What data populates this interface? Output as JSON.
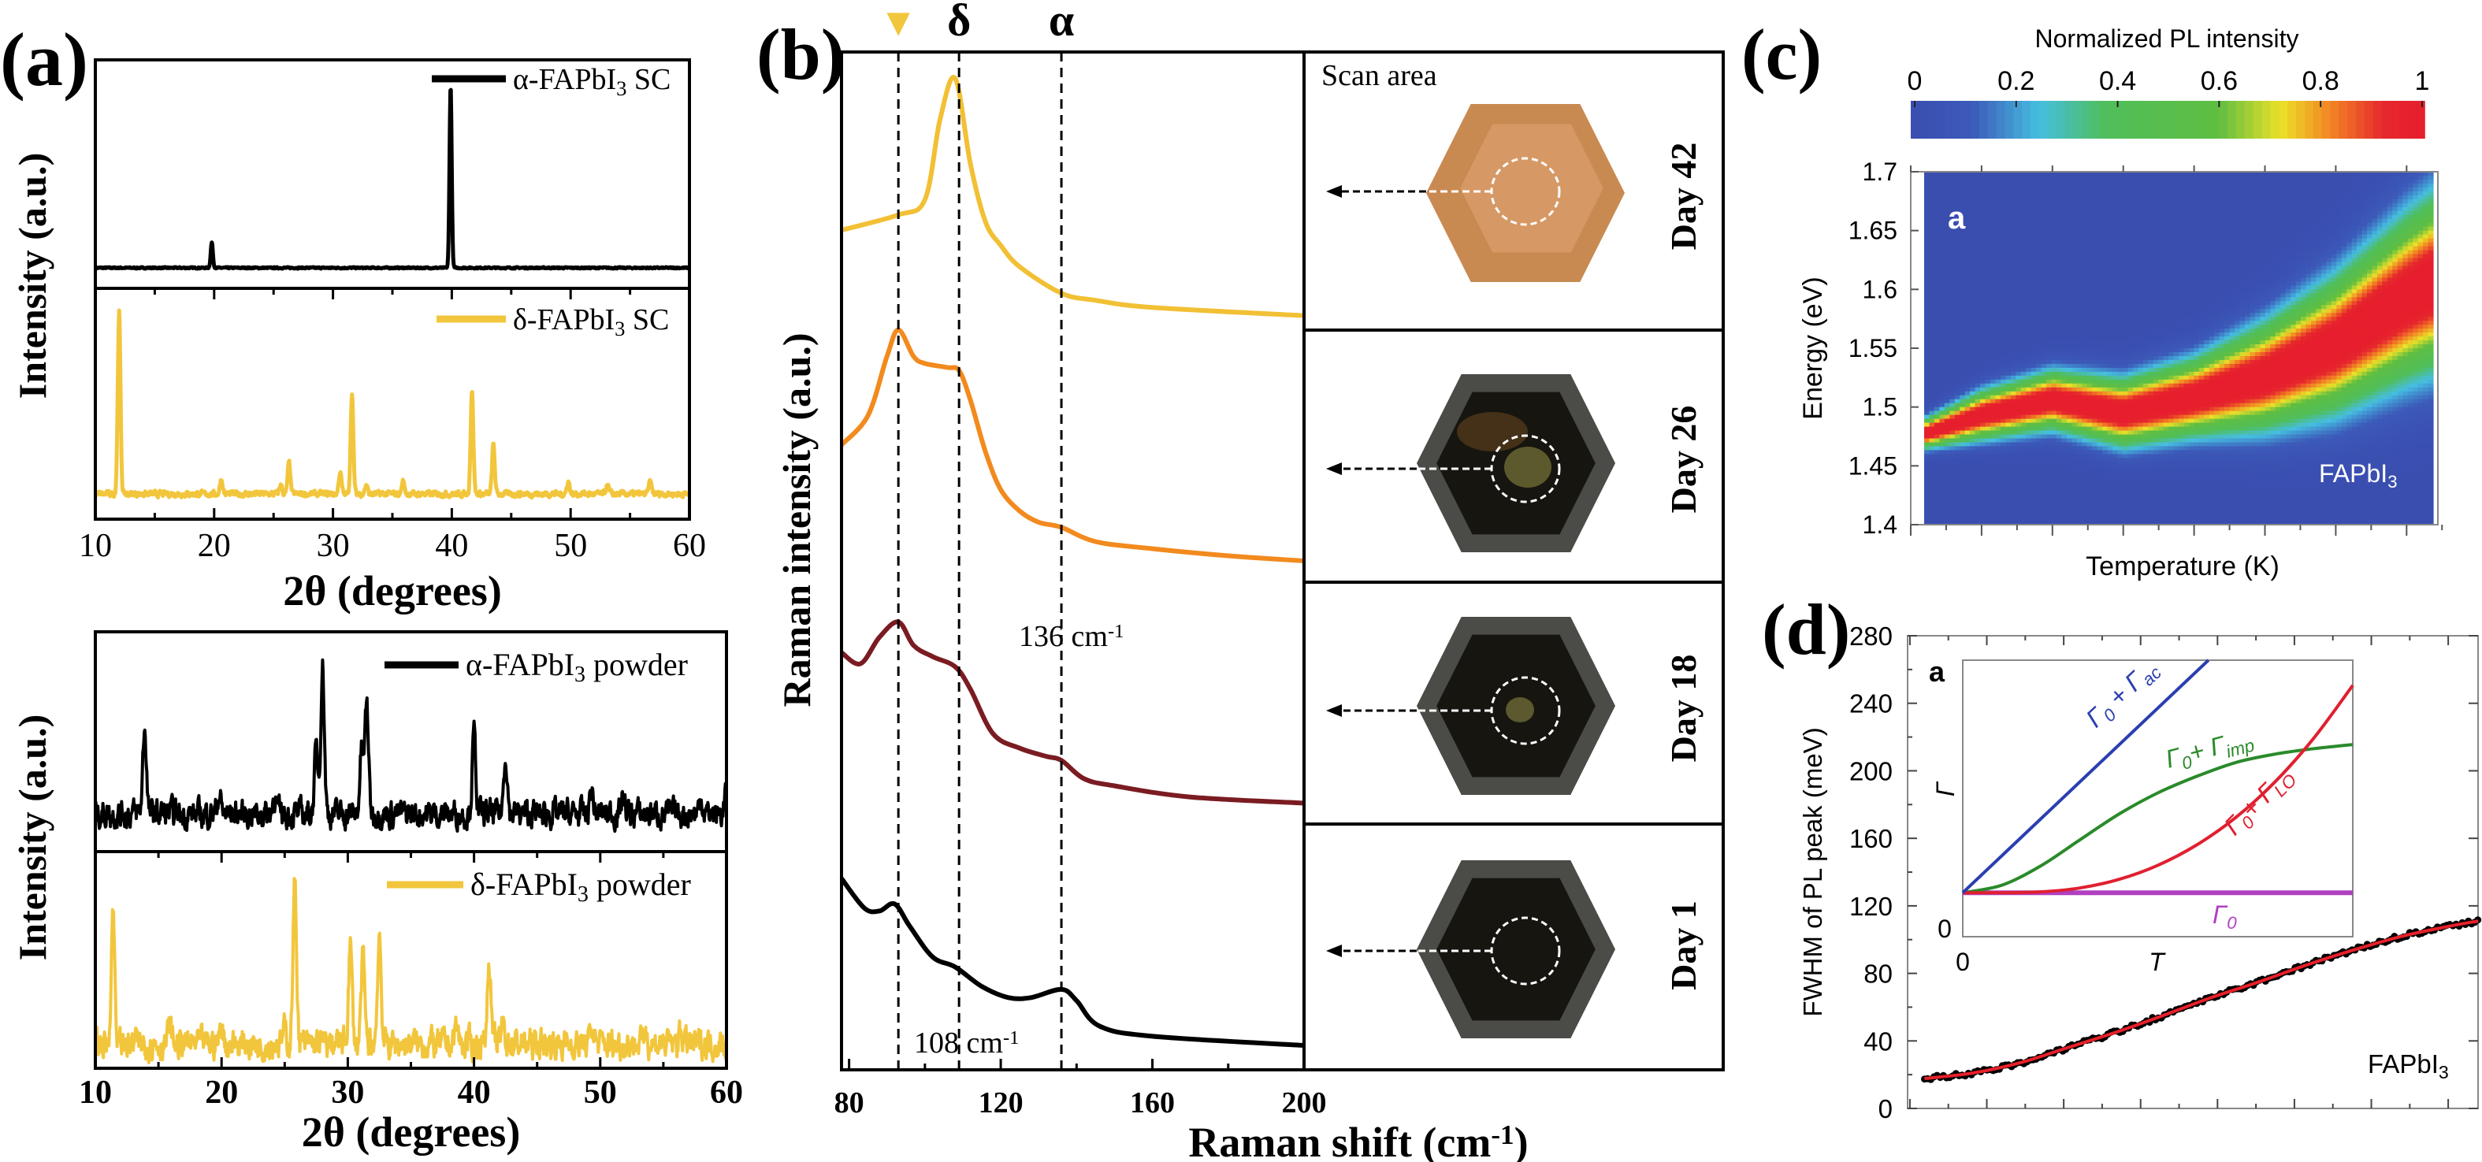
{
  "chart_data": [
    {
      "panel": "(a)",
      "type": "line",
      "xlabel": "2θ  (degrees)",
      "ylabel": "Intensity (a.u.)",
      "xlim": [
        10,
        60
      ],
      "xticks": [
        10,
        20,
        30,
        40,
        50,
        60
      ],
      "stacked": true,
      "series": [
        {
          "name": "α-FAPbI3 SC",
          "label": [
            "α-FAPbI",
            "3",
            " SC"
          ],
          "color": "#000000",
          "peaks": [
            [
              19.8,
              0.14
            ],
            [
              39.9,
              1.0
            ]
          ]
        },
        {
          "name": "δ-FAPbI3 SC",
          "label": [
            "δ-FAPbI",
            "3",
            " SC"
          ],
          "color": "#f2c63c",
          "peaks": [
            [
              12.0,
              1.0
            ],
            [
              20.6,
              0.08
            ],
            [
              25.6,
              0.05
            ],
            [
              26.3,
              0.17
            ],
            [
              30.6,
              0.12
            ],
            [
              31.6,
              0.55
            ],
            [
              32.8,
              0.05
            ],
            [
              35.9,
              0.07
            ],
            [
              41.7,
              0.57
            ],
            [
              43.5,
              0.27
            ],
            [
              49.8,
              0.07
            ],
            [
              53.1,
              0.05
            ],
            [
              56.7,
              0.07
            ]
          ]
        }
      ]
    },
    {
      "panel": "",
      "type": "line",
      "xlabel": "2θ  (degrees)",
      "ylabel": "Intensity (a.u.)",
      "xlim": [
        10,
        60
      ],
      "xticks": [
        10,
        20,
        30,
        40,
        50,
        60
      ],
      "stacked": true,
      "series": [
        {
          "name": "α-FAPbI3 powder",
          "label": [
            "α-FAPbI",
            "3",
            " powder"
          ],
          "color": "#000000",
          "peaks": [
            [
              13.9,
              0.55
            ],
            [
              19.8,
              0.12
            ],
            [
              24.2,
              0.12
            ],
            [
              27.5,
              0.4
            ],
            [
              28.0,
              0.95
            ],
            [
              31.1,
              0.4
            ],
            [
              31.5,
              0.7
            ],
            [
              40.0,
              0.5
            ],
            [
              42.5,
              0.38
            ],
            [
              49.3,
              0.15
            ],
            [
              51.8,
              0.12
            ],
            [
              58.0,
              0.1
            ],
            [
              60.0,
              0.17
            ]
          ]
        },
        {
          "name": "δ-FAPbI3 powder",
          "label": [
            "δ-FAPbI",
            "3",
            " powder"
          ],
          "color": "#f2c63c",
          "peaks": [
            [
              11.4,
              0.78
            ],
            [
              15.9,
              0.1
            ],
            [
              20.0,
              0.1
            ],
            [
              25.0,
              0.08
            ],
            [
              25.8,
              0.95
            ],
            [
              30.2,
              0.58
            ],
            [
              31.2,
              0.5
            ],
            [
              32.5,
              0.65
            ],
            [
              38.6,
              0.1
            ],
            [
              41.2,
              0.5
            ],
            [
              42.3,
              0.12
            ],
            [
              49.4,
              0.1
            ],
            [
              53.6,
              0.08
            ],
            [
              56.4,
              0.08
            ]
          ]
        }
      ]
    },
    {
      "panel": "(b)",
      "type": "line",
      "xlabel": [
        "Raman shift (cm",
        "-1",
        ")"
      ],
      "ylabel": "Raman intensity (a.u.)",
      "xlim": [
        78,
        200
      ],
      "xticks": [
        80,
        120,
        160,
        200
      ],
      "ylim": [
        0,
        10
      ],
      "reference_lines": [
        {
          "x": 93,
          "marker": "▼",
          "marker_color": "#f2c63c"
        },
        {
          "x": 109,
          "marker": "δ"
        },
        {
          "x": 136,
          "marker": "α"
        }
      ],
      "annotations": [
        [
          "136 cm",
          "-1"
        ],
        [
          "108 cm",
          "-1"
        ]
      ],
      "series": [
        {
          "name": "Day 42",
          "color": "#f2c035",
          "points": [
            [
              78,
              8.25
            ],
            [
              93,
              8.4
            ],
            [
              100,
              8.55
            ],
            [
              104,
              9.34
            ],
            [
              108,
              9.74
            ],
            [
              112,
              8.9
            ],
            [
              116,
              8.33
            ],
            [
              120,
              8.1
            ],
            [
              125,
              7.89
            ],
            [
              136,
              7.63
            ],
            [
              145,
              7.56
            ],
            [
              160,
              7.49
            ],
            [
              200,
              7.41
            ]
          ]
        },
        {
          "name": "Day 26",
          "color": "#f28a1e",
          "points": [
            [
              78,
              6.14
            ],
            [
              85,
              6.43
            ],
            [
              90,
              7.01
            ],
            [
              93,
              7.27
            ],
            [
              97,
              7.01
            ],
            [
              100,
              6.94
            ],
            [
              106,
              6.9
            ],
            [
              109,
              6.87
            ],
            [
              112,
              6.58
            ],
            [
              116,
              6.07
            ],
            [
              120,
              5.7
            ],
            [
              125,
              5.49
            ],
            [
              130,
              5.38
            ],
            [
              136,
              5.33
            ],
            [
              145,
              5.19
            ],
            [
              160,
              5.12
            ],
            [
              180,
              5.05
            ],
            [
              200,
              5.0
            ]
          ]
        },
        {
          "name": "Day 18",
          "color": "#7a1c22",
          "points": [
            [
              78,
              4.1
            ],
            [
              83,
              3.99
            ],
            [
              88,
              4.25
            ],
            [
              93,
              4.4
            ],
            [
              97,
              4.17
            ],
            [
              102,
              4.06
            ],
            [
              108,
              3.96
            ],
            [
              112,
              3.74
            ],
            [
              118,
              3.3
            ],
            [
              125,
              3.16
            ],
            [
              132,
              3.08
            ],
            [
              136,
              3.04
            ],
            [
              142,
              2.86
            ],
            [
              150,
              2.79
            ],
            [
              170,
              2.68
            ],
            [
              200,
              2.62
            ]
          ]
        },
        {
          "name": "Day 1",
          "color": "#000000",
          "points": [
            [
              78,
              1.88
            ],
            [
              84,
              1.59
            ],
            [
              88,
              1.56
            ],
            [
              92,
              1.63
            ],
            [
              96,
              1.41
            ],
            [
              102,
              1.11
            ],
            [
              108,
              1.01
            ],
            [
              115,
              0.82
            ],
            [
              122,
              0.71
            ],
            [
              128,
              0.71
            ],
            [
              136,
              0.79
            ],
            [
              140,
              0.68
            ],
            [
              146,
              0.43
            ],
            [
              160,
              0.33
            ],
            [
              200,
              0.24
            ]
          ]
        }
      ],
      "photos": {
        "title": "Scan area",
        "days": [
          "Day 42",
          "Day 26",
          "Day 18",
          "Day 1"
        ]
      }
    },
    {
      "panel": "(c)",
      "type": "heatmap",
      "colorbar_title": "Normalized PL intensity",
      "colorbar_ticks": [
        "0",
        "0.2",
        "0.4",
        "0.6",
        "0.8",
        "1"
      ],
      "colorbar_range": [
        0,
        1
      ],
      "colormap": "jet",
      "xlabel": "Temperature (K)",
      "ylabel": "Energy (eV)",
      "ylim": [
        1.4,
        1.7
      ],
      "yticks": [
        "1.4",
        "1.45",
        "1.5",
        "1.55",
        "1.6",
        "1.65",
        "1.7"
      ],
      "x_major_ticks": 8,
      "inner_label": "a",
      "sample_label": [
        "FAPbI",
        "3"
      ],
      "ridge": {
        "x_tick_index": [
          0.19,
          1,
          2,
          3,
          4,
          5,
          6,
          7,
          7.38
        ],
        "peak_energy_eV": [
          1.477,
          1.493,
          1.506,
          1.495,
          1.508,
          1.526,
          1.553,
          1.593,
          1.606
        ],
        "band_halfwidth_eV": [
          0.015,
          0.025,
          0.03,
          0.035,
          0.04,
          0.055,
          0.07,
          0.085,
          0.09
        ]
      }
    },
    {
      "panel": "(d)",
      "type": "line",
      "ylabel": "FWHM of PL peak (meV)",
      "ylim": [
        0,
        280
      ],
      "yticks": [
        "0",
        "40",
        "80",
        "120",
        "160",
        "200",
        "240",
        "280"
      ],
      "x_major_ticks": 7,
      "sample_label": [
        "FAPbI",
        "3"
      ],
      "series": [
        {
          "name": "data",
          "color": "#000000",
          "marker": "dot",
          "points": [
            [
              0.22,
              17.7
            ],
            [
              0.84,
              20.9
            ],
            [
              1.46,
              27
            ],
            [
              2.08,
              36
            ],
            [
              2.7,
              45
            ],
            [
              3.32,
              55
            ],
            [
              3.94,
              65.5
            ],
            [
              4.57,
              75
            ],
            [
              5.19,
              85
            ],
            [
              5.81,
              94
            ],
            [
              6.43,
              102
            ],
            [
              7.05,
              108
            ],
            [
              7.42,
              111
            ]
          ]
        },
        {
          "name": "fit",
          "color": "#e8202a",
          "marker": "line"
        }
      ],
      "inset": {
        "label": "a",
        "ylabel": "Γ",
        "xlabel": "T",
        "y_zero": "0",
        "x_zero": "0",
        "curves": [
          {
            "label": [
              "Γ",
              "0",
              " + Γ",
              "ac"
            ],
            "color": "#2b3fb0",
            "points": [
              [
                0,
                0.159
              ],
              [
                0.63,
                1.0
              ]
            ]
          },
          {
            "label": [
              "Γ",
              "0",
              "+ Γ",
              "imp"
            ],
            "color": "#2a8a2a",
            "points": [
              [
                0,
                0.159
              ],
              [
                0.1,
                0.186
              ],
              [
                0.2,
                0.256
              ],
              [
                0.3,
                0.35
              ],
              [
                0.4,
                0.443
              ],
              [
                0.5,
                0.52
              ],
              [
                0.6,
                0.58
              ],
              [
                0.7,
                0.63
              ],
              [
                0.8,
                0.66
              ],
              [
                0.9,
                0.68
              ],
              [
                1.0,
                0.695
              ]
            ]
          },
          {
            "label": [
              "Γ",
              "0",
              "+ Γ",
              "LO"
            ],
            "color": "#e02030",
            "points": [
              [
                0,
                0.159
              ],
              [
                0.1,
                0.159
              ],
              [
                0.2,
                0.162
              ],
              [
                0.3,
                0.176
              ],
              [
                0.4,
                0.207
              ],
              [
                0.5,
                0.258
              ],
              [
                0.6,
                0.332
              ],
              [
                0.7,
                0.431
              ],
              [
                0.8,
                0.559
              ],
              [
                0.9,
                0.718
              ],
              [
                1.0,
                0.909
              ]
            ]
          },
          {
            "label": [
              "Γ",
              "0",
              "",
              ""
            ],
            "color": "#b040c0",
            "points": [
              [
                0,
                0.159
              ],
              [
                1.0,
                0.159
              ]
            ]
          }
        ]
      }
    }
  ]
}
